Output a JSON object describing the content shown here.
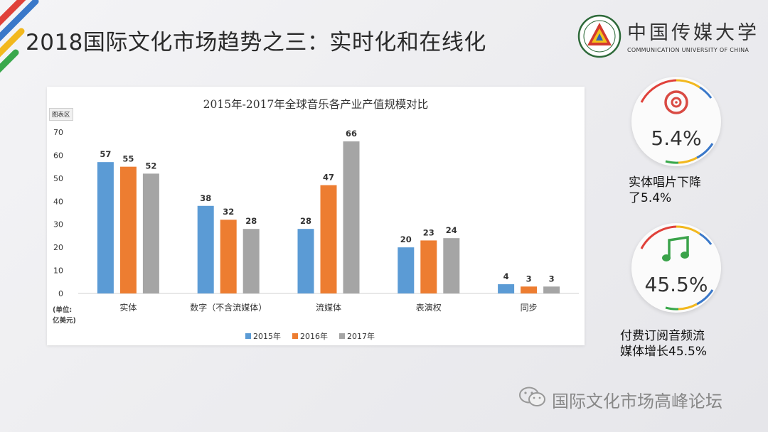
{
  "slide": {
    "title": "2018国际文化市场趋势之三：实时化和在线化"
  },
  "logo": {
    "name": "中国传媒大学",
    "subtitle": "COMMUNICATION UNIVERSITY OF CHINA"
  },
  "chart_data": {
    "type": "bar",
    "title": "2015年-2017年全球音乐各产业产值规模对比",
    "area_tag": "图表区",
    "unit_label": [
      "(单位:",
      "亿美元)"
    ],
    "categories": [
      "实体",
      "数字（不含流媒体）",
      "流媒体",
      "表演权",
      "同步"
    ],
    "series": [
      {
        "name": "2015年",
        "color": "#5b9bd5",
        "values": [
          57,
          38,
          28,
          20,
          4
        ]
      },
      {
        "name": "2016年",
        "color": "#ed7d31",
        "values": [
          55,
          32,
          47,
          23,
          3
        ]
      },
      {
        "name": "2017年",
        "color": "#a5a5a5",
        "values": [
          52,
          28,
          66,
          24,
          3
        ]
      }
    ],
    "yticks": [
      0,
      10,
      20,
      30,
      40,
      50,
      60,
      70
    ],
    "ylim": [
      0,
      70
    ],
    "grid": false,
    "data_labels": true,
    "legend": "bottom"
  },
  "stats": [
    {
      "value": "5.4%",
      "caption": [
        "实体唱片下降",
        "了5.4%"
      ],
      "icon": "disc-icon",
      "icon_color": "#d94a43"
    },
    {
      "value": "45.5%",
      "caption": [
        "付费订阅音频流",
        "媒体增长45.5%"
      ],
      "icon": "music-note-icon",
      "icon_color": "#3aa34a"
    }
  ],
  "footer": {
    "text": "国际文化市场高峰论坛",
    "icon": "wechat-icon"
  }
}
